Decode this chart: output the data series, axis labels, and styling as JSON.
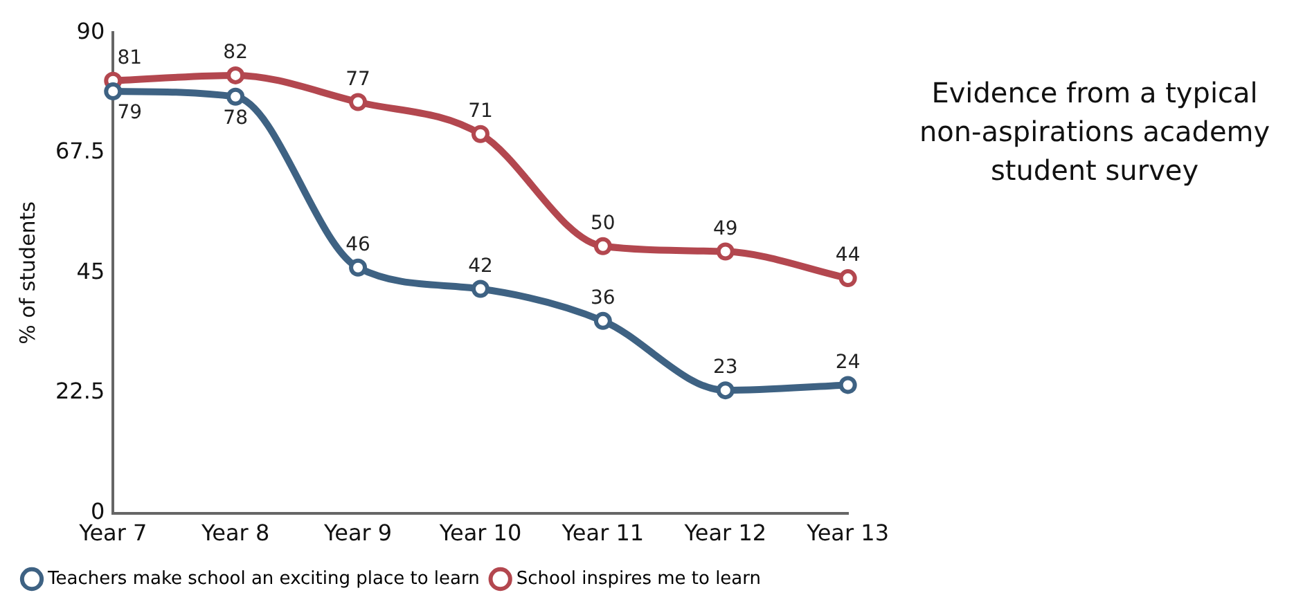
{
  "chart_data": {
    "type": "line",
    "title": "Evidence from a typical non-aspirations academy student survey",
    "ylabel": "% of students",
    "categories": [
      "Year 7",
      "Year 8",
      "Year 9",
      "Year 10",
      "Year 11",
      "Year 12",
      "Year 13"
    ],
    "series": [
      {
        "name": "Teachers make school an exciting place to learn",
        "color": "#3e6283",
        "values": [
          79,
          78,
          46,
          42,
          36,
          23,
          24
        ]
      },
      {
        "name": "School inspires me to learn",
        "color": "#b3474f",
        "values": [
          81,
          82,
          77,
          71,
          50,
          49,
          44
        ]
      }
    ],
    "ylim": [
      0,
      90
    ],
    "yticks": [
      0,
      22.5,
      45,
      67.5,
      90
    ],
    "grid": false,
    "legend": "bottom",
    "marker": "circle",
    "line_style": "solid",
    "data_labels": true
  }
}
